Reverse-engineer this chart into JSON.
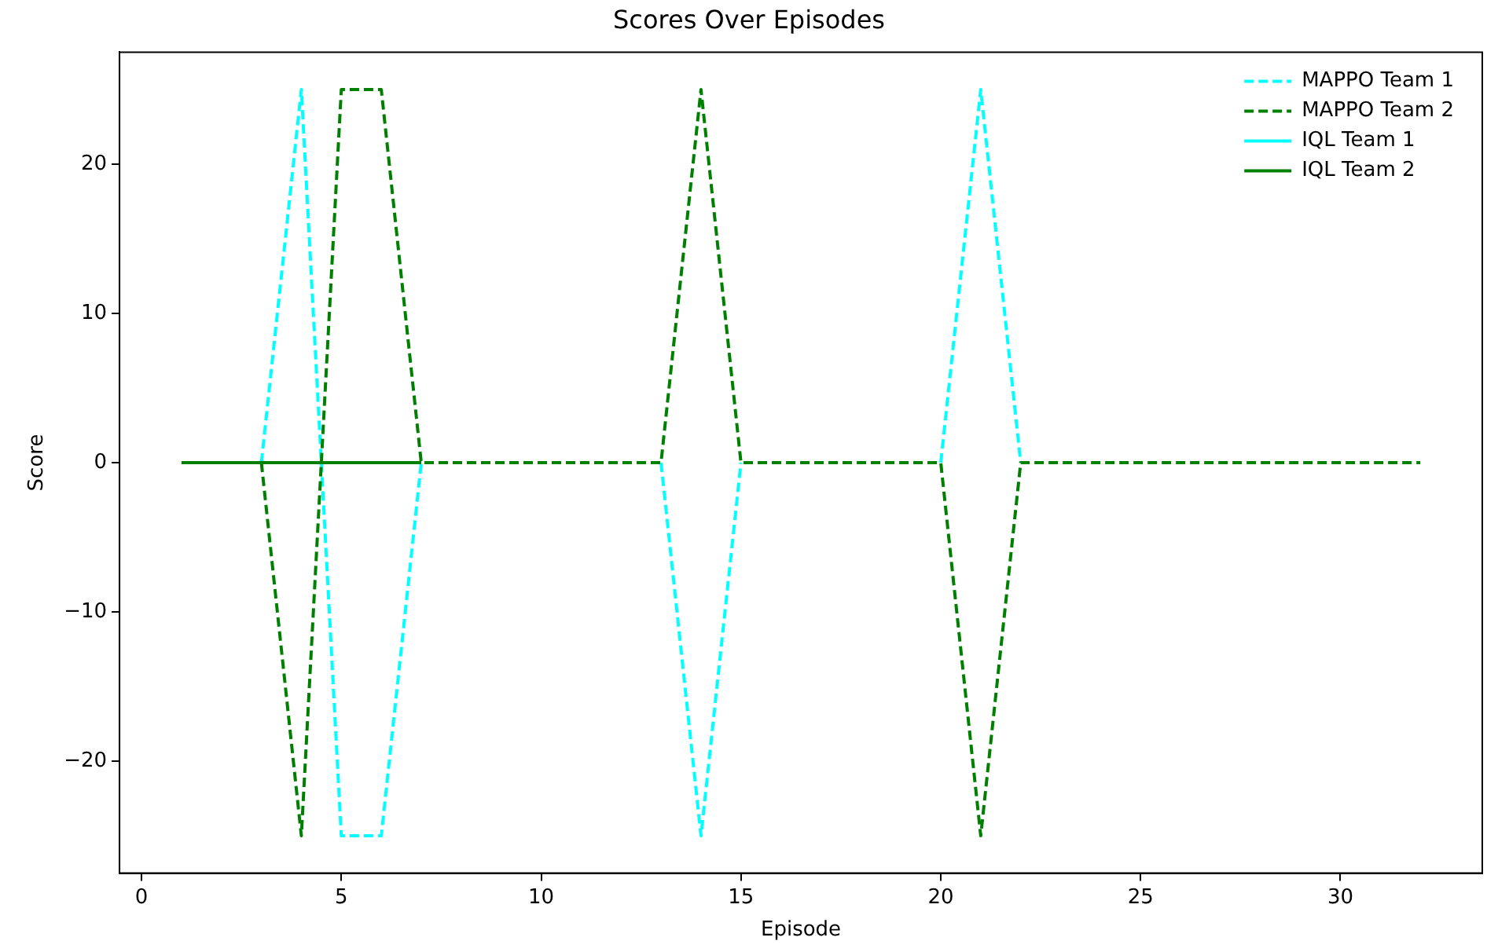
{
  "chart_data": {
    "type": "line",
    "title": "Scores Over Episodes",
    "xlabel": "Episode",
    "ylabel": "Score",
    "x": [
      1,
      2,
      3,
      4,
      5,
      6,
      7,
      8,
      9,
      10,
      11,
      12,
      13,
      14,
      15,
      16,
      17,
      18,
      19,
      20,
      21,
      22,
      23,
      24,
      25,
      26,
      27,
      28,
      29,
      30,
      31,
      32
    ],
    "series": [
      {
        "name": "MAPPO Team 1",
        "color": "#00ffff",
        "line_style": "dashed",
        "values": [
          null,
          null,
          0,
          25,
          -25,
          -25,
          0,
          null,
          null,
          null,
          null,
          null,
          0,
          -25,
          0,
          null,
          null,
          null,
          null,
          0,
          25,
          0,
          null,
          null,
          null,
          null,
          null,
          null,
          null,
          null,
          null,
          null
        ]
      },
      {
        "name": "MAPPO Team 2",
        "color": "#008000",
        "line_style": "dashed",
        "values": [
          null,
          null,
          0,
          -25,
          25,
          25,
          0,
          0,
          0,
          0,
          0,
          0,
          0,
          25,
          0,
          0,
          0,
          0,
          0,
          0,
          -25,
          0,
          0,
          0,
          0,
          0,
          0,
          0,
          0,
          0,
          0,
          0
        ]
      },
      {
        "name": "IQL Team 1",
        "color": "#00ffff",
        "line_style": "solid",
        "values": [
          null,
          null,
          null,
          null,
          null,
          null,
          null,
          null,
          null,
          null,
          null,
          null,
          null,
          null,
          null,
          null,
          null,
          null,
          null,
          null,
          null,
          null,
          null,
          null,
          null,
          null,
          null,
          null,
          null,
          null,
          null,
          null
        ]
      },
      {
        "name": "IQL Team 2",
        "color": "#008000",
        "line_style": "solid",
        "values": [
          0,
          0,
          0,
          0,
          0,
          0,
          0,
          null,
          null,
          null,
          null,
          null,
          null,
          null,
          null,
          null,
          null,
          null,
          null,
          null,
          null,
          null,
          null,
          null,
          null,
          null,
          null,
          null,
          null,
          null,
          null,
          null
        ]
      }
    ],
    "xlim": [
      -0.55,
      33.55
    ],
    "xticks": [
      0,
      5,
      10,
      15,
      20,
      25,
      30
    ],
    "ylim": [
      -27.5,
      27.5
    ],
    "yticks": [
      -20,
      -10,
      0,
      10,
      20
    ],
    "grid": false,
    "legend": "top right",
    "marker": "none"
  }
}
